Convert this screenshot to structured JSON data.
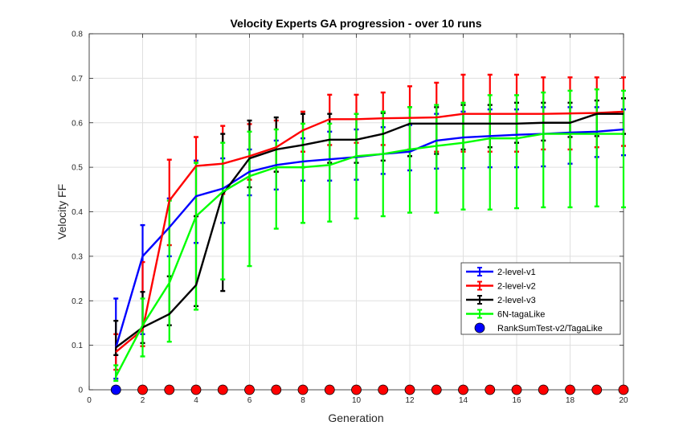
{
  "chart_data": {
    "type": "line",
    "title": "Velocity Experts GA progression - over 10 runs",
    "xlabel": "Generation",
    "ylabel": "Velocity FF",
    "xlim": [
      0,
      20
    ],
    "ylim": [
      0,
      0.8
    ],
    "xticks": [
      "0",
      "2",
      "4",
      "6",
      "8",
      "10",
      "12",
      "14",
      "16",
      "18",
      "20"
    ],
    "yticks": [
      "0",
      "0.1",
      "0.2",
      "0.3",
      "0.4",
      "0.5",
      "0.6",
      "0.7",
      "0.8"
    ],
    "grid": true,
    "legend_position": "bottom-right",
    "x": [
      1,
      2,
      3,
      4,
      5,
      6,
      7,
      8,
      9,
      10,
      11,
      12,
      13,
      14,
      15,
      16,
      17,
      18,
      19,
      20
    ],
    "series": [
      {
        "name": "2-level-v1",
        "color": "#0000ff",
        "values": [
          0.095,
          0.3,
          0.365,
          0.435,
          0.452,
          0.49,
          0.505,
          0.513,
          0.518,
          0.523,
          0.53,
          0.535,
          0.56,
          0.567,
          0.57,
          0.573,
          0.575,
          0.578,
          0.58,
          0.585
        ],
        "upper": [
          0.205,
          0.37,
          0.43,
          0.515,
          0.52,
          0.54,
          0.56,
          0.565,
          0.58,
          0.585,
          0.59,
          0.595,
          0.62,
          0.625,
          0.63,
          0.63,
          0.635,
          0.635,
          0.635,
          0.63
        ],
        "lower": [
          0.025,
          0.125,
          0.3,
          0.33,
          0.375,
          0.437,
          0.45,
          0.47,
          0.47,
          0.472,
          0.485,
          0.493,
          0.497,
          0.498,
          0.5,
          0.5,
          0.502,
          0.508,
          0.523,
          0.527
        ]
      },
      {
        "name": "2-level-v2",
        "color": "#ff0000",
        "values": [
          0.085,
          0.135,
          0.425,
          0.503,
          0.508,
          0.525,
          0.545,
          0.583,
          0.608,
          0.608,
          0.61,
          0.611,
          0.612,
          0.62,
          0.62,
          0.62,
          0.62,
          0.621,
          0.622,
          0.625
        ],
        "upper": [
          0.125,
          0.287,
          0.517,
          0.568,
          0.593,
          0.597,
          0.605,
          0.625,
          0.663,
          0.663,
          0.668,
          0.682,
          0.69,
          0.708,
          0.708,
          0.708,
          0.702,
          0.702,
          0.702,
          0.702
        ],
        "lower": [
          0.045,
          0.098,
          0.325,
          0.39,
          0.44,
          0.472,
          0.49,
          0.535,
          0.55,
          0.555,
          0.55,
          0.54,
          0.535,
          0.535,
          0.535,
          0.535,
          0.54,
          0.54,
          0.545,
          0.548
        ]
      },
      {
        "name": "2-level-v3",
        "color": "#000000",
        "values": [
          0.095,
          0.14,
          0.17,
          0.235,
          0.44,
          0.52,
          0.54,
          0.55,
          0.562,
          0.562,
          0.575,
          0.598,
          0.598,
          0.598,
          0.598,
          0.598,
          0.6,
          0.6,
          0.62,
          0.62
        ],
        "upper": [
          0.155,
          0.22,
          0.255,
          0.39,
          0.575,
          0.605,
          0.612,
          0.62,
          0.62,
          0.62,
          0.622,
          0.635,
          0.635,
          0.64,
          0.64,
          0.645,
          0.645,
          0.645,
          0.65,
          0.655
        ],
        "lower": [
          0.078,
          0.105,
          0.145,
          0.188,
          0.222,
          0.455,
          0.49,
          0.5,
          0.51,
          0.51,
          0.515,
          0.525,
          0.53,
          0.54,
          0.545,
          0.555,
          0.56,
          0.568,
          0.57,
          0.575
        ]
      },
      {
        "name": "6N-tagaLike",
        "color": "#00ff00",
        "values": [
          0.03,
          0.145,
          0.24,
          0.39,
          0.445,
          0.48,
          0.5,
          0.5,
          0.505,
          0.525,
          0.53,
          0.54,
          0.548,
          0.555,
          0.565,
          0.565,
          0.575,
          0.575,
          0.575,
          0.575
        ],
        "upper": [
          0.055,
          0.205,
          0.425,
          0.51,
          0.555,
          0.58,
          0.585,
          0.598,
          0.598,
          0.62,
          0.625,
          0.635,
          0.64,
          0.645,
          0.662,
          0.662,
          0.668,
          0.672,
          0.675,
          0.672
        ],
        "lower": [
          0.02,
          0.075,
          0.108,
          0.18,
          0.248,
          0.278,
          0.362,
          0.375,
          0.378,
          0.385,
          0.39,
          0.398,
          0.398,
          0.405,
          0.405,
          0.408,
          0.41,
          0.41,
          0.412,
          0.41
        ]
      }
    ],
    "markers": {
      "name": "RankSumTest-v2/TagaLike",
      "legend_color": "#0000ff",
      "x": [
        1,
        2,
        3,
        4,
        5,
        6,
        7,
        8,
        9,
        10,
        11,
        12,
        13,
        14,
        15,
        16,
        17,
        18,
        19,
        20
      ],
      "y": [
        0,
        0,
        0,
        0,
        0,
        0,
        0,
        0,
        0,
        0,
        0,
        0,
        0,
        0,
        0,
        0,
        0,
        0,
        0,
        0
      ],
      "colors": [
        "#0000ff",
        "#ff0000",
        "#ff0000",
        "#ff0000",
        "#ff0000",
        "#ff0000",
        "#ff0000",
        "#ff0000",
        "#ff0000",
        "#ff0000",
        "#ff0000",
        "#ff0000",
        "#ff0000",
        "#ff0000",
        "#ff0000",
        "#ff0000",
        "#ff0000",
        "#ff0000",
        "#ff0000",
        "#ff0000"
      ]
    }
  }
}
